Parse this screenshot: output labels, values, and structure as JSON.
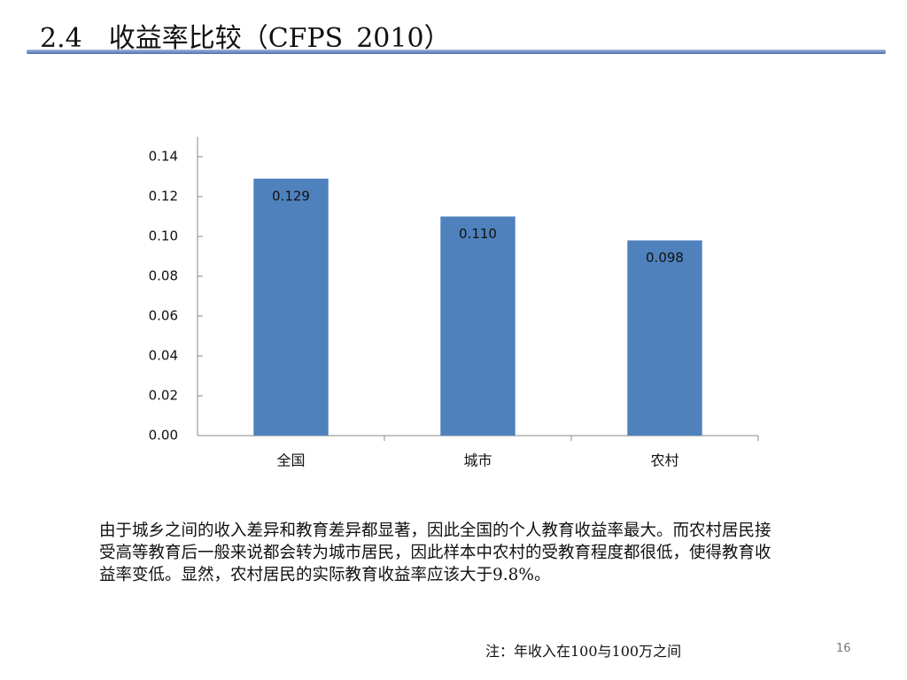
{
  "title": "2.4　收益率比较（CFPS_2010）",
  "paragraph": "由于城乡之间的收入差异和教育差异都显著，因此全国的个人教育收益率最大。而农村居民接受高等教育后一般来说都会转为城市居民，因此样本中农村的受教育程度都很低，使得教育收益率变低。显然，农村居民的实际教育收益率应该大于9.8%。",
  "note": "注：年收入在100与100万之间",
  "page_number": "16",
  "chart_data": {
    "type": "bar",
    "categories": [
      "全国",
      "城市",
      "农村"
    ],
    "values": [
      0.129,
      0.11,
      0.098
    ],
    "value_labels": [
      "0.129",
      "0.110",
      "0.098"
    ],
    "color": "#4f81bd",
    "ylim": [
      0,
      0.15
    ],
    "yticks": [
      {
        "value": 0,
        "label": "0.00"
      },
      {
        "value": 0.02,
        "label": "0.02"
      },
      {
        "value": 0.04,
        "label": "0.04"
      },
      {
        "value": 0.06,
        "label": "0.06"
      },
      {
        "value": 0.08,
        "label": "0.08"
      },
      {
        "value": 0.1,
        "label": "0.10"
      },
      {
        "value": 0.12,
        "label": "0.12"
      },
      {
        "value": 0.14,
        "label": "0.14"
      }
    ],
    "grid": false
  }
}
